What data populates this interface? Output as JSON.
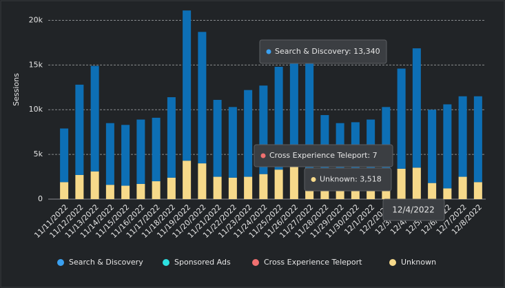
{
  "chart_data": {
    "type": "stacked_bar",
    "y_label": "Sessions",
    "categories": [
      "11/11/2022",
      "11/12/2022",
      "11/13/2022",
      "11/14/2022",
      "11/15/2022",
      "11/16/2022",
      "11/17/2022",
      "11/18/2022",
      "11/19/2022",
      "11/20/2022",
      "11/21/2022",
      "11/22/2022",
      "11/23/2022",
      "11/24/2022",
      "11/25/2022",
      "11/26/2022",
      "11/27/2022",
      "11/28/2022",
      "11/29/2022",
      "11/30/2022",
      "12/1/2022",
      "12/2/2022",
      "12/3/2022",
      "12/4/2022",
      "12/5/2022",
      "12/6/2022",
      "12/7/2022",
      "12/8/2022"
    ],
    "series": [
      {
        "name": "Search & Discovery",
        "color": "#0d6fb5",
        "legend_color": "#3aa0f0",
        "values": [
          6000,
          10100,
          11800,
          6900,
          6800,
          7200,
          7100,
          9000,
          16800,
          14700,
          8600,
          7900,
          9700,
          9900,
          11500,
          12000,
          12100,
          7500,
          6800,
          6900,
          7200,
          8200,
          11200,
          13340,
          8200,
          9400,
          9000,
          9600
        ]
      },
      {
        "name": "Sponsored Ads",
        "color": "#2de0e0",
        "legend_color": "#2de0e0",
        "values": [
          0,
          0,
          0,
          0,
          0,
          0,
          0,
          0,
          0,
          0,
          0,
          0,
          0,
          0,
          0,
          0,
          0,
          0,
          0,
          0,
          0,
          0,
          0,
          0,
          0,
          0,
          0,
          0
        ]
      },
      {
        "name": "Cross Experience Teleport",
        "color": "#f07070",
        "legend_color": "#f07070",
        "values": [
          0,
          0,
          0,
          0,
          0,
          0,
          0,
          0,
          0,
          0,
          0,
          0,
          0,
          0,
          0,
          0,
          0,
          0,
          0,
          0,
          0,
          0,
          0,
          7,
          0,
          0,
          0,
          0
        ]
      },
      {
        "name": "Unknown",
        "color": "#f6d98a",
        "legend_color": "#f6d98a",
        "values": [
          1900,
          2700,
          3100,
          1600,
          1500,
          1700,
          2000,
          2400,
          4300,
          4000,
          2500,
          2400,
          2500,
          2800,
          3300,
          3600,
          3500,
          1900,
          1700,
          1700,
          1700,
          2100,
          3400,
          3518,
          1800,
          1200,
          2500,
          1900
        ]
      }
    ],
    "ylim": [
      0,
      21500
    ],
    "yticks": [
      0,
      {
        "value": 5000,
        "label": "5k"
      },
      {
        "value": 10000,
        "label": "10k"
      },
      {
        "value": 15000,
        "label": "15k"
      },
      {
        "value": 20000,
        "label": "20k"
      }
    ],
    "grid": true,
    "legend": "bottom",
    "tooltips": [
      {
        "text": "Search & Discovery: 13,340",
        "color": "#3aa0f0"
      },
      {
        "text": "Cross Experience Teleport: 7",
        "color": "#f07070"
      },
      {
        "text": "Unknown: 3,518",
        "color": "#f6d98a"
      }
    ],
    "tooltip_date": "12/4/2022"
  }
}
